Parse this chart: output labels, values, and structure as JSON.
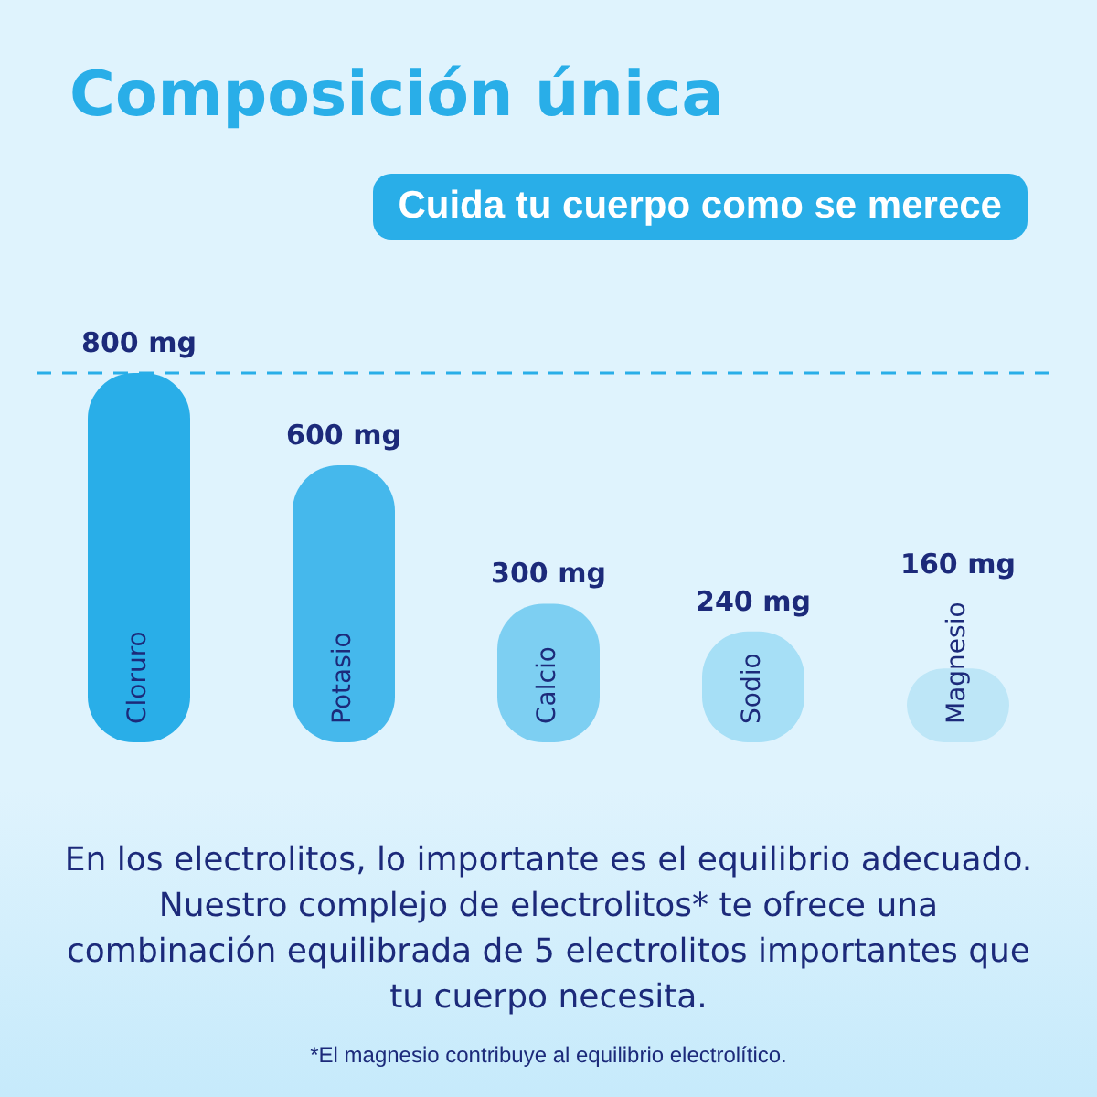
{
  "chart_data": {
    "type": "bar",
    "title": "Composición única",
    "subtitle": "Cuida tu cuerpo como se merece",
    "categories": [
      "Cloruro",
      "Potasio",
      "Calcio",
      "Sodio",
      "Magnesio"
    ],
    "values": [
      800,
      600,
      300,
      240,
      160
    ],
    "value_labels": [
      "800 mg",
      "600 mg",
      "300 mg",
      "240 mg",
      "160 mg"
    ],
    "colors": [
      "#29aee8",
      "#45b8ec",
      "#7dcff2",
      "#a6dff6",
      "#bde6f7"
    ],
    "ylim": [
      0,
      800
    ],
    "ref_lines": [
      {
        "axis": "y",
        "value": 800,
        "color": "#29aee8",
        "line_style": "dashed"
      }
    ],
    "tick_labels": false,
    "legend": false,
    "annotations": [
      "En los electrolitos, lo importante es el equilibrio adecuado. Nuestro complejo de electrolitos* te ofrece una combinación equilibrada de 5 electrolitos importantes que tu cuerpo necesita.",
      "*El magnesio contribuye al equilibrio electrolítico."
    ]
  }
}
